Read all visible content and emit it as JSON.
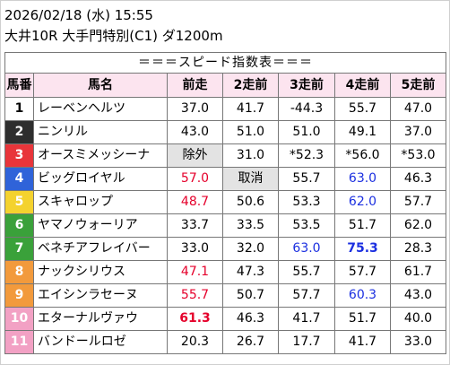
{
  "header": {
    "line1": "2026/02/18 (水) 15:55",
    "line2": "大井10R 大手門特別(C1) ダ1200m"
  },
  "table": {
    "title": "＝＝＝スピード指数表＝＝＝",
    "columns": [
      "馬番",
      "馬名",
      "前走",
      "2走前",
      "3走前",
      "4走前",
      "5走前"
    ],
    "rows": [
      {
        "num": "1",
        "name": "レーベンヘルツ",
        "bg": "#ffffff",
        "fg": "#000000",
        "cells": [
          {
            "v": "37.0",
            "c": "black"
          },
          {
            "v": "41.7",
            "c": "black"
          },
          {
            "v": "-44.3",
            "c": "black"
          },
          {
            "v": "55.7",
            "c": "black"
          },
          {
            "v": "47.0",
            "c": "black"
          }
        ]
      },
      {
        "num": "2",
        "name": "ニンリル",
        "bg": "#2e2e2e",
        "fg": "#ffffff",
        "cells": [
          {
            "v": "43.0",
            "c": "black"
          },
          {
            "v": "51.0",
            "c": "black"
          },
          {
            "v": "51.0",
            "c": "black"
          },
          {
            "v": "49.1",
            "c": "black"
          },
          {
            "v": "37.0",
            "c": "black"
          }
        ]
      },
      {
        "num": "3",
        "name": "オースミメッシーナ",
        "bg": "#e8353a",
        "fg": "#ffffff",
        "cells": [
          {
            "v": "除外",
            "c": "black",
            "gray": true
          },
          {
            "v": "31.0",
            "c": "black"
          },
          {
            "v": "*52.3",
            "c": "black"
          },
          {
            "v": "*56.0",
            "c": "black"
          },
          {
            "v": "*53.0",
            "c": "black"
          }
        ]
      },
      {
        "num": "4",
        "name": "ビッグロイヤル",
        "bg": "#2f63d9",
        "fg": "#ffffff",
        "cells": [
          {
            "v": "57.0",
            "c": "red"
          },
          {
            "v": "取消",
            "c": "black",
            "gray": true
          },
          {
            "v": "55.7",
            "c": "black"
          },
          {
            "v": "63.0",
            "c": "blue"
          },
          {
            "v": "46.3",
            "c": "black"
          }
        ]
      },
      {
        "num": "5",
        "name": "スキャロップ",
        "bg": "#f4d22e",
        "fg": "#ffffff",
        "cells": [
          {
            "v": "48.7",
            "c": "red"
          },
          {
            "v": "50.6",
            "c": "black"
          },
          {
            "v": "53.3",
            "c": "black"
          },
          {
            "v": "62.0",
            "c": "blue"
          },
          {
            "v": "57.7",
            "c": "black"
          }
        ]
      },
      {
        "num": "6",
        "name": "ヤマノウォーリア",
        "bg": "#3aa13a",
        "fg": "#ffffff",
        "cells": [
          {
            "v": "33.7",
            "c": "black"
          },
          {
            "v": "33.5",
            "c": "black"
          },
          {
            "v": "53.5",
            "c": "black"
          },
          {
            "v": "51.7",
            "c": "black"
          },
          {
            "v": "62.0",
            "c": "black"
          }
        ]
      },
      {
        "num": "7",
        "name": "ベネチアフレイバー",
        "bg": "#3aa13a",
        "fg": "#ffffff",
        "cells": [
          {
            "v": "33.0",
            "c": "black"
          },
          {
            "v": "32.0",
            "c": "black"
          },
          {
            "v": "63.0",
            "c": "blue"
          },
          {
            "v": "75.3",
            "c": "blue",
            "bold": true
          },
          {
            "v": "28.3",
            "c": "black"
          }
        ]
      },
      {
        "num": "8",
        "name": "ナックシリウス",
        "bg": "#f29a3c",
        "fg": "#ffffff",
        "cells": [
          {
            "v": "47.1",
            "c": "red"
          },
          {
            "v": "47.3",
            "c": "black"
          },
          {
            "v": "55.7",
            "c": "black"
          },
          {
            "v": "57.7",
            "c": "black"
          },
          {
            "v": "61.7",
            "c": "black"
          }
        ]
      },
      {
        "num": "9",
        "name": "エイシンラセーヌ",
        "bg": "#f29a3c",
        "fg": "#ffffff",
        "cells": [
          {
            "v": "55.7",
            "c": "red"
          },
          {
            "v": "50.7",
            "c": "black"
          },
          {
            "v": "57.7",
            "c": "black"
          },
          {
            "v": "60.3",
            "c": "blue"
          },
          {
            "v": "43.0",
            "c": "black"
          }
        ]
      },
      {
        "num": "10",
        "name": "エターナルヴァウ",
        "bg": "#f2a1c4",
        "fg": "#ffffff",
        "cells": [
          {
            "v": "61.3",
            "c": "red",
            "bold": true
          },
          {
            "v": "46.3",
            "c": "black"
          },
          {
            "v": "41.7",
            "c": "black"
          },
          {
            "v": "51.7",
            "c": "black"
          },
          {
            "v": "40.0",
            "c": "black"
          }
        ]
      },
      {
        "num": "11",
        "name": "バンドールロゼ",
        "bg": "#f2a1c4",
        "fg": "#ffffff",
        "cells": [
          {
            "v": "20.3",
            "c": "black"
          },
          {
            "v": "26.7",
            "c": "black"
          },
          {
            "v": "17.7",
            "c": "black"
          },
          {
            "v": "41.7",
            "c": "black"
          },
          {
            "v": "33.0",
            "c": "black"
          }
        ]
      }
    ]
  }
}
